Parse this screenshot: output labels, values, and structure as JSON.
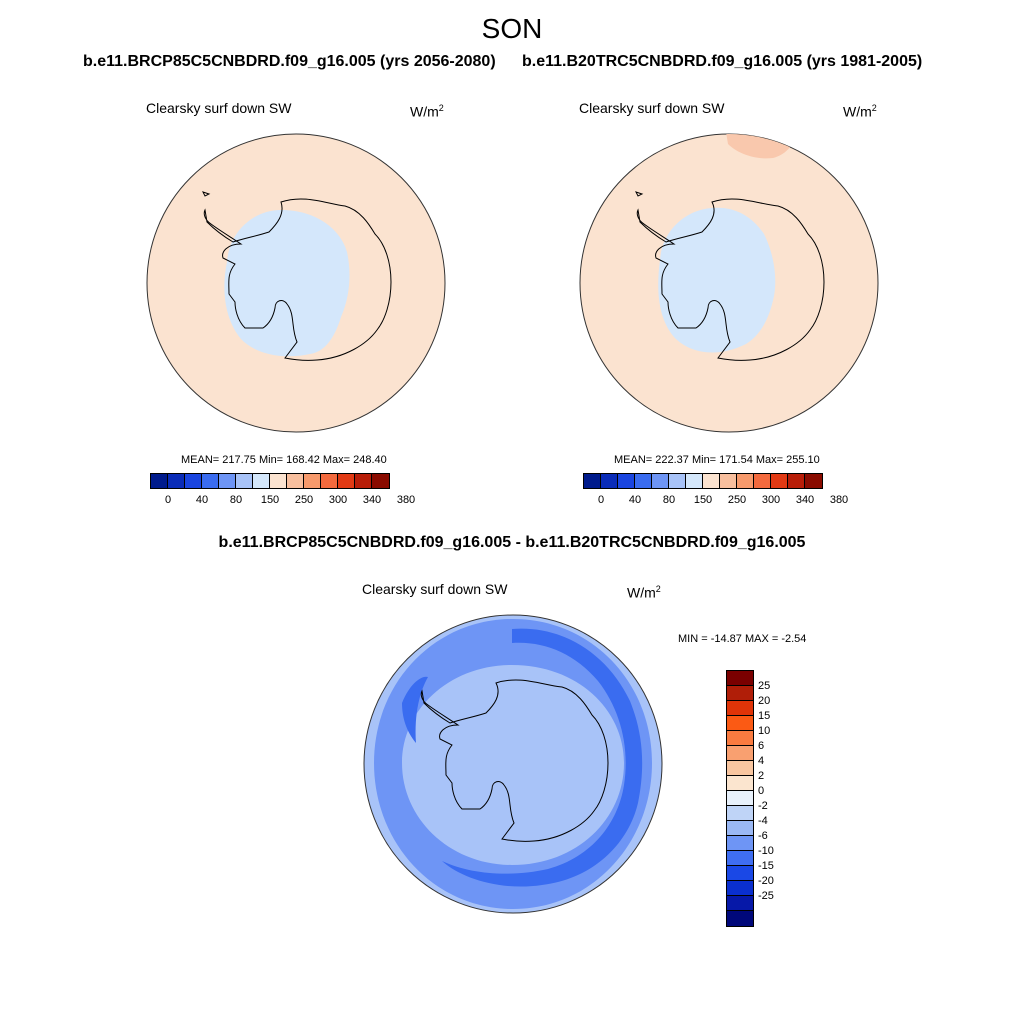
{
  "season": "SON",
  "panels": [
    {
      "run_title": "b.e11.BRCP85C5CNBDRD.f09_g16.005 (yrs 2056-2080)",
      "variable": "Clearsky surf down SW",
      "units": "W/m",
      "units_sup": "2",
      "stats": "MEAN= 217.75  Min= 168.42  Max= 248.40",
      "ocean_color": "#fbe3d0",
      "ice_color": "#d4e7fb"
    },
    {
      "run_title": "b.e11.B20TRC5CNBDRD.f09_g16.005 (yrs 1981-2005)",
      "variable": "Clearsky surf down SW",
      "units": "W/m",
      "units_sup": "2",
      "stats": "MEAN= 222.37  Min= 171.54  Max= 255.10",
      "ocean_color": "#fbe3d0",
      "ice_color": "#d4e7fb",
      "warm_patch_color": "#f9c8ad"
    }
  ],
  "panel_colorbar": {
    "colors": [
      "#001b8c",
      "#0a2cb8",
      "#1a45e0",
      "#3a6cf0",
      "#6e95f5",
      "#a8c3f8",
      "#d4e7fb",
      "#fbe3d0",
      "#f8bf9e",
      "#f79a6c",
      "#f36a3e",
      "#e23a14",
      "#b81d08",
      "#8a0b00"
    ],
    "labels": [
      "0",
      "40",
      "80",
      "150",
      "250",
      "300",
      "340",
      "380"
    ]
  },
  "difference": {
    "title": "b.e11.BRCP85C5CNBDRD.f09_g16.005 - b.e11.B20TRC5CNBDRD.f09_g16.005",
    "variable": "Clearsky surf down SW",
    "units": "W/m",
    "units_sup": "2",
    "minmax": "MIN = -14.87 MAX =  -2.54",
    "base_color": "#a8c3f8",
    "band_color": "#6e95f5",
    "strong_color": "#3a6cf0",
    "colorbar": {
      "colors": [
        "#7a0000",
        "#b01e08",
        "#e03408",
        "#fb5a14",
        "#fa7b40",
        "#f9a070",
        "#f9c6a0",
        "#fbe5cf",
        "#e8f1fb",
        "#bfd4f7",
        "#9ab8f4",
        "#6e95f5",
        "#3f6ef2",
        "#1a48e6",
        "#0a2fcf",
        "#0618a8",
        "#00087a"
      ],
      "labels": [
        "25",
        "20",
        "15",
        "10",
        "6",
        "4",
        "2",
        "0",
        "-2",
        "-4",
        "-6",
        "-10",
        "-15",
        "-20",
        "-25"
      ]
    }
  }
}
